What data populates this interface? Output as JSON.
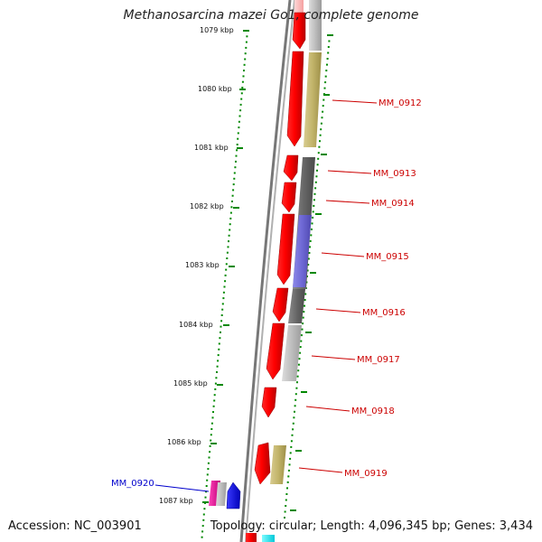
{
  "title": "Methanosarcina mazei Go1, complete genome",
  "footer": {
    "accession": "Accession: NC_003901",
    "summary": "Topology: circular; Length: 4,096,345 bp; Genes: 3,434"
  },
  "colors": {
    "label_red": "#cc0000",
    "label_blue": "#0000cc",
    "tick_green": "#008800",
    "backbone": "#777777"
  },
  "ticks": [
    {
      "label": "1079 kbp"
    },
    {
      "label": "1080 kbp"
    },
    {
      "label": "1081 kbp"
    },
    {
      "label": "1082 kbp"
    },
    {
      "label": "1083 kbp"
    },
    {
      "label": "1084 kbp"
    },
    {
      "label": "1085 kbp"
    },
    {
      "label": "1086 kbp"
    },
    {
      "label": "1087 kbp"
    }
  ],
  "gene_labels": [
    {
      "name": "MM_0912"
    },
    {
      "name": "MM_0913"
    },
    {
      "name": "MM_0914"
    },
    {
      "name": "MM_0915"
    },
    {
      "name": "MM_0916"
    },
    {
      "name": "MM_0917"
    },
    {
      "name": "MM_0918"
    },
    {
      "name": "MM_0919"
    },
    {
      "name": "MM_0920"
    }
  ]
}
